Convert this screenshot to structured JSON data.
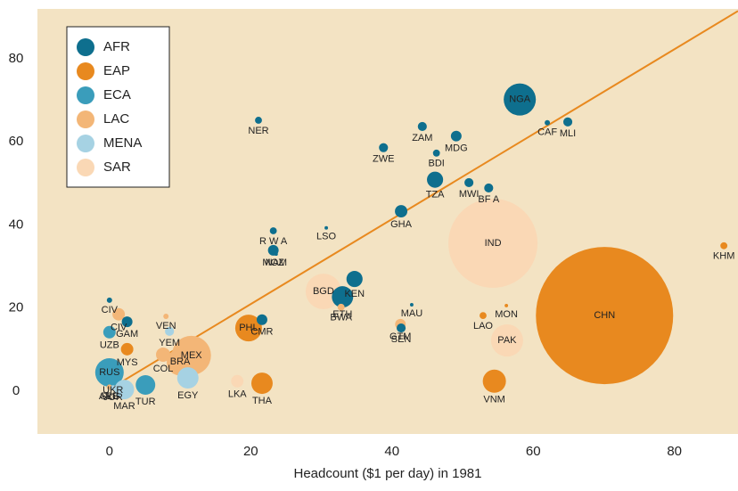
{
  "chart_data": {
    "type": "bubble",
    "x_label": "Headcount ($1 per day) in 1981",
    "xlim": [
      -10.2,
      89
    ],
    "ylim": [
      -10.3,
      92
    ],
    "xticks": [
      0,
      20,
      40,
      60,
      80
    ],
    "yticks": [
      0,
      20,
      40,
      60,
      80
    ],
    "grid": false,
    "legend": "upper left",
    "trend": {
      "color": "#e8891f",
      "x": [
        0,
        89
      ],
      "y": [
        0.5,
        91.5
      ]
    },
    "series": [
      {
        "name": "AFR",
        "color": "#0e6f8e",
        "labels": [
          "NGA",
          "NER",
          "ZAM",
          "MDG",
          "BDI",
          "ZWE",
          "CAF",
          "MLI",
          "TZA",
          "MWI",
          "BF A",
          "GHA",
          "R W A",
          "LSO",
          "MOZ",
          "NAM",
          "KEN",
          "ETH",
          "CMR",
          "CIV",
          "GAM",
          "SEN",
          "MAU",
          "SLE"
        ],
        "x": [
          58.1,
          21.1,
          44.3,
          49.1,
          46.3,
          38.8,
          62.0,
          64.9,
          46.1,
          50.9,
          53.7,
          41.3,
          23.2,
          30.7,
          23.2,
          23.6,
          34.7,
          33.0,
          21.6,
          0,
          2.5,
          41.3,
          42.8,
          0
        ],
        "values": [
          70.2,
          65.2,
          63.7,
          61.4,
          57.3,
          58.6,
          64.6,
          64.8,
          50.9,
          50.2,
          48.9,
          43.3,
          38.6,
          39.3,
          33.9,
          33.0,
          27.0,
          22.7,
          17.2,
          21.9,
          16.7,
          15.2,
          20.8,
          1.0
        ],
        "sizes": [
          127,
          6,
          10,
          14,
          6,
          10,
          3.5,
          10,
          32,
          10,
          10,
          19,
          6,
          1.5,
          14,
          1.5,
          32,
          56,
          14,
          3.5,
          14,
          10,
          1.5,
          3.5
        ]
      },
      {
        "name": "EAP",
        "color": "#e8891f",
        "labels": [
          "CHN",
          "VNM",
          "THA",
          "PHL",
          "LAO",
          "KHM",
          "MON",
          "MYS"
        ],
        "x": [
          70.1,
          54.5,
          21.6,
          19.7,
          52.9,
          87.0,
          56.2,
          2.5
        ],
        "values": [
          18.2,
          2.4,
          1.9,
          15.2,
          18.2,
          35.0,
          20.6,
          10.1
        ],
        "sizes": [
          2316,
          66,
          56,
          88,
          6,
          6,
          1.5,
          19
        ]
      },
      {
        "name": "ECA",
        "color": "#3a9dbb",
        "labels": [
          "RUS",
          "UZB",
          "TUR",
          "UKR"
        ],
        "x": [
          0,
          0,
          5.1,
          0.5
        ],
        "values": [
          4.5,
          14.2,
          1.5,
          3.0
        ],
        "sizes": [
          100,
          19,
          47,
          10
        ]
      },
      {
        "name": "LAC",
        "color": "#f3b677",
        "labels": [
          "MEX",
          "BRA",
          "COL",
          "VEN",
          "GTM",
          "ARG",
          "BWA",
          "CIV"
        ],
        "x": [
          11.6,
          10.0,
          7.6,
          8.0,
          41.2,
          0,
          32.8,
          1.3
        ],
        "values": [
          8.6,
          7.0,
          8.8,
          18.0,
          16.1,
          1.0,
          20.2,
          18.5
        ],
        "sizes": [
          189,
          88,
          25,
          3.5,
          14,
          3.5,
          6,
          19
        ]
      },
      {
        "name": "MENA",
        "color": "#a6d2e3",
        "labels": [
          "EGY",
          "MAR",
          "YEM",
          "JOR"
        ],
        "x": [
          11.1,
          2.1,
          8.5,
          0.5
        ],
        "values": [
          3.2,
          0.4,
          14.4,
          0.8
        ],
        "sizes": [
          56,
          47,
          10,
          3.5
        ]
      },
      {
        "name": "SAR",
        "color": "#fad8b5",
        "labels": [
          "IND",
          "PAK",
          "BGD",
          "LKA"
        ],
        "x": [
          54.3,
          56.3,
          30.3,
          18.1
        ],
        "values": [
          35.6,
          12.2,
          24.0,
          2.4
        ],
        "sizes": [
          977,
          127,
          156,
          19
        ]
      }
    ]
  }
}
